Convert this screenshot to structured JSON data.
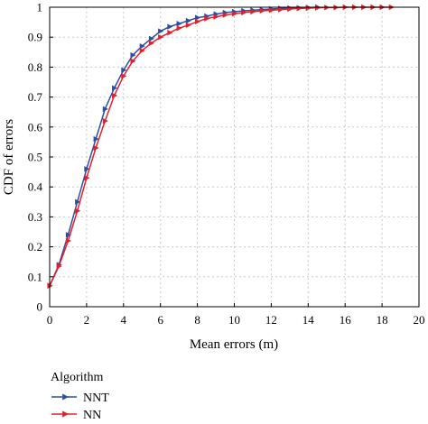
{
  "chart_data": {
    "type": "line",
    "xlabel": "Mean errors (m)",
    "ylabel": "CDF of errors",
    "xlim": [
      0,
      20
    ],
    "ylim": [
      0,
      1
    ],
    "xticks": [
      "0",
      "2",
      "4",
      "6",
      "8",
      "10",
      "12",
      "14",
      "16",
      "18",
      "20"
    ],
    "yticks": [
      "0",
      "0.1",
      "0.2",
      "0.3",
      "0.4",
      "0.5",
      "0.6",
      "0.7",
      "0.8",
      "0.9",
      "1"
    ],
    "grid": true,
    "legend": {
      "title": "Algorithm",
      "placement": "below"
    },
    "series": [
      {
        "name": "NNT",
        "color": "#2b4fa3",
        "marker": "triangle-right",
        "x": [
          0,
          0.5,
          1,
          1.5,
          2,
          2.5,
          3,
          3.5,
          4,
          4.5,
          5,
          5.5,
          6,
          6.5,
          7,
          7.5,
          8,
          8.5,
          9,
          9.5,
          10,
          10.5,
          11,
          11.5,
          12,
          12.5,
          13,
          13.5,
          14,
          14.5
        ],
        "y": [
          0.07,
          0.14,
          0.24,
          0.35,
          0.46,
          0.56,
          0.66,
          0.73,
          0.79,
          0.84,
          0.87,
          0.895,
          0.92,
          0.935,
          0.945,
          0.955,
          0.965,
          0.97,
          0.977,
          0.982,
          0.985,
          0.988,
          0.99,
          0.992,
          0.994,
          0.996,
          0.997,
          0.998,
          0.999,
          1.0
        ]
      },
      {
        "name": "NN",
        "color": "#e2222a",
        "marker": "triangle-right",
        "x": [
          0,
          0.5,
          1,
          1.5,
          2,
          2.5,
          3,
          3.5,
          4,
          4.5,
          5,
          5.5,
          6,
          6.5,
          7,
          7.5,
          8,
          8.5,
          9,
          9.5,
          10,
          10.5,
          11,
          11.5,
          12,
          12.5,
          13,
          13.5,
          14,
          14.5,
          15,
          15.5,
          16,
          16.5,
          17,
          17.5,
          18,
          18.5
        ],
        "y": [
          0.07,
          0.135,
          0.22,
          0.32,
          0.43,
          0.53,
          0.62,
          0.705,
          0.77,
          0.82,
          0.855,
          0.88,
          0.9,
          0.915,
          0.93,
          0.94,
          0.952,
          0.962,
          0.968,
          0.974,
          0.978,
          0.982,
          0.985,
          0.988,
          0.99,
          0.992,
          0.994,
          0.996,
          0.997,
          0.998,
          0.999,
          0.999,
          1.0,
          1.0,
          1.0,
          1.0,
          1.0,
          1.0
        ]
      }
    ]
  }
}
